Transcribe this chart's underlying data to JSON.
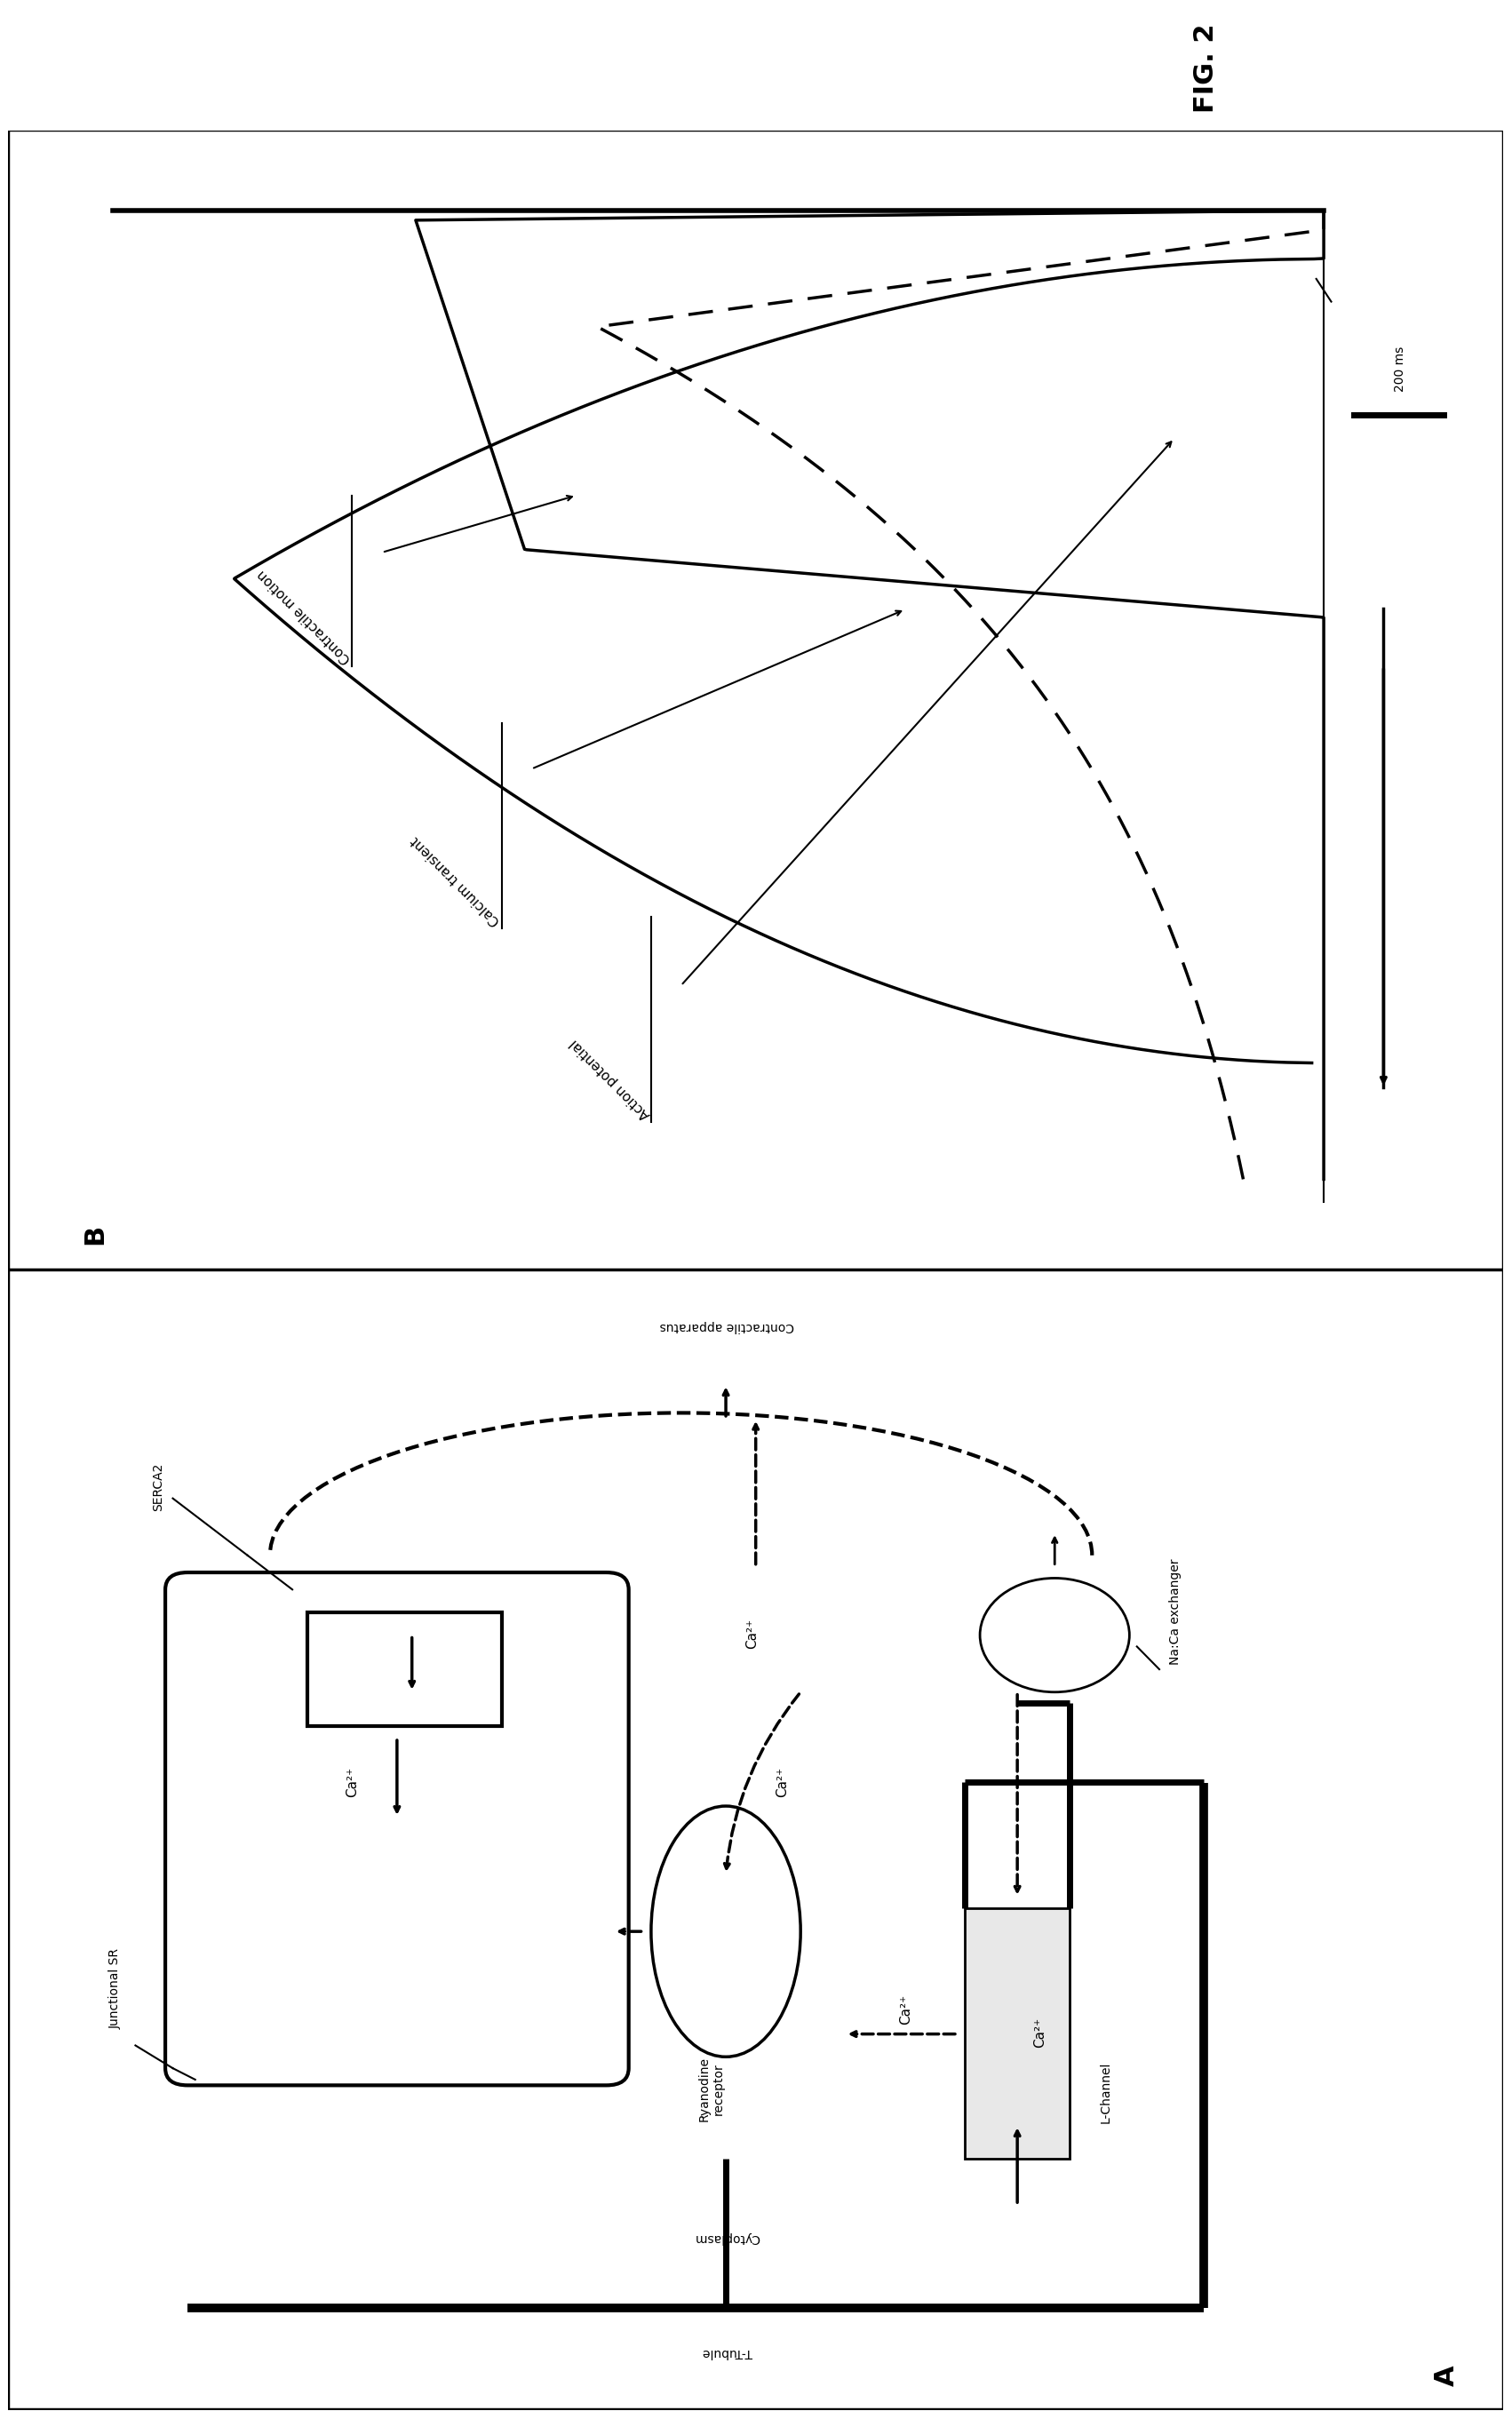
{
  "fig_title": "FIG. 2",
  "panel_A_label": "A",
  "panel_B_label": "B",
  "bg_color": "#ffffff",
  "annotations_A": {
    "T_Tubule": "T-Tubule",
    "Cytoplasm": "Cytoplasm",
    "LChannel": "L-Channel",
    "Ca2_lchannel": "Ca²⁺",
    "Junctional_SR": "Junctional SR",
    "Ryanodine_receptor": "Ryanodine\nreceptor",
    "Ca2_ryr": "Ca²⁺",
    "Ca2_sr": "Ca²⁺",
    "SERCA2": "SERCA2",
    "NaCa_exchanger": "Na:Ca exchanger",
    "Ca2_cytoplasm": "Ca²⁺",
    "Contractile_apparatus": "Contractile apparatus"
  },
  "annotations_B": {
    "Action_potential": "Action potential",
    "Calcium_transient": "Calcium transient",
    "Contractile_motion": "Contractile motion",
    "scale_bar": "200 ms"
  }
}
